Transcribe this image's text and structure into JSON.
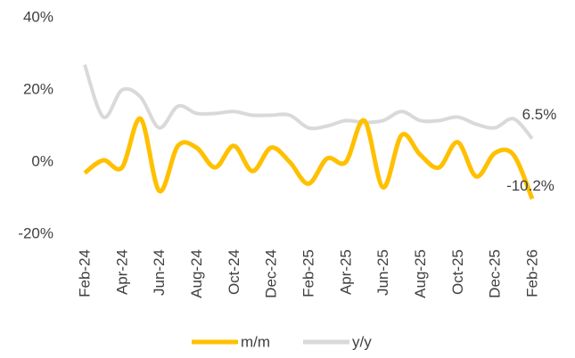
{
  "chart_data": {
    "type": "line",
    "categories": [
      "Feb-24",
      null,
      "Apr-24",
      null,
      "Jun-24",
      null,
      "Aug-24",
      null,
      "Oct-24",
      null,
      "Dec-24",
      null,
      "Feb-25",
      null,
      "Apr-25",
      null,
      "Jun-25",
      null,
      "Aug-25",
      null,
      "Oct-25",
      null,
      "Dec-25",
      null,
      "Feb-26"
    ],
    "series": [
      {
        "name": "m/m",
        "color": "#ffc000",
        "values": [
          -3,
          0.5,
          -1.5,
          12,
          -8,
          4.5,
          4,
          -1.5,
          4.5,
          -2.5,
          4,
          0,
          -6,
          1,
          0,
          11.5,
          -7,
          7.5,
          2,
          -1.5,
          5.5,
          -4,
          2.5,
          2,
          -10.2
        ],
        "value_labels": [
          null,
          null,
          null,
          null,
          null,
          null,
          null,
          null,
          null,
          null,
          null,
          null,
          null,
          null,
          null,
          null,
          null,
          null,
          null,
          null,
          null,
          null,
          null,
          null,
          "-10.2%"
        ]
      },
      {
        "name": "y/y",
        "color": "#d9d9d9",
        "values": [
          27,
          12.5,
          20,
          18,
          9.5,
          15.5,
          13.5,
          13.5,
          14,
          13,
          13,
          13,
          9.5,
          10,
          11.5,
          11,
          11.5,
          14,
          11.5,
          11.5,
          12.5,
          10.5,
          9.5,
          12,
          6.5
        ],
        "value_labels": [
          null,
          null,
          null,
          null,
          null,
          null,
          null,
          null,
          null,
          null,
          null,
          null,
          null,
          null,
          null,
          null,
          null,
          null,
          null,
          null,
          null,
          null,
          null,
          null,
          "6.5%"
        ]
      }
    ],
    "ylim": [
      -20,
      40
    ],
    "yticks": [
      {
        "value": -20,
        "label": "-20%"
      },
      {
        "value": 0,
        "label": "0%"
      },
      {
        "value": 20,
        "label": "20%"
      },
      {
        "value": 40,
        "label": "40%"
      }
    ],
    "grid": false,
    "legend": "bottom"
  }
}
